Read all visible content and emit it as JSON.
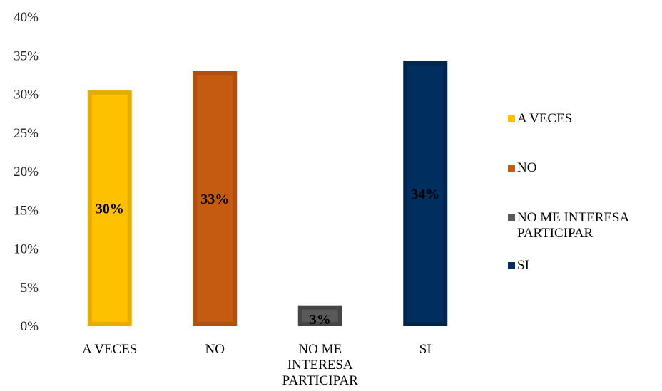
{
  "chart_data": {
    "type": "bar",
    "categories": [
      "A VECES",
      "NO",
      "NO ME INTERESA PARTICIPAR",
      "SI"
    ],
    "values": [
      30.5,
      33.0,
      2.7,
      34.3
    ],
    "data_labels": [
      "30%",
      "33%",
      "3%",
      "34%"
    ],
    "colors": [
      "#FFC000",
      "#C55A11",
      "#595959",
      "#002F5F"
    ],
    "border_colors": [
      "#E6AC00",
      "#B24F0E",
      "#454545",
      "#00264D"
    ],
    "ylim": [
      0,
      40
    ],
    "yticks": [
      0,
      5,
      10,
      15,
      20,
      25,
      30,
      35,
      40
    ],
    "ytick_labels": [
      "0%",
      "5%",
      "10%",
      "15%",
      "20%",
      "25%",
      "30%",
      "35%",
      "40%"
    ],
    "title": "",
    "xlabel": "",
    "ylabel": "",
    "grid": false,
    "legend_position": "right",
    "legend": [
      "A VECES",
      "NO",
      "NO ME INTERESA PARTICIPAR",
      "SI"
    ]
  }
}
